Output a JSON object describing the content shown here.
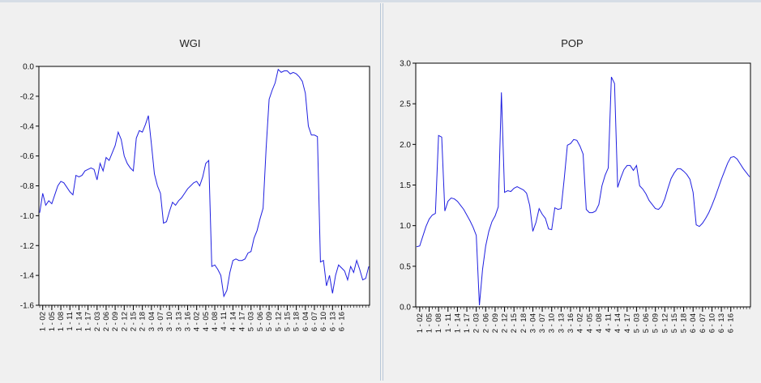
{
  "chart_data": [
    {
      "type": "line",
      "title": "WGI",
      "xlabel": "",
      "ylabel": "",
      "ylim": [
        -1.6,
        0.0
      ],
      "yticks": [
        "0.0",
        "-0.2",
        "-0.4",
        "-0.6",
        "-0.8",
        "-1.0",
        "-1.2",
        "-1.4",
        "-1.6"
      ],
      "ytick_values": [
        0.0,
        -0.2,
        -0.4,
        -0.6,
        -0.8,
        -1.0,
        -1.2,
        -1.4,
        -1.6
      ],
      "xticks": [
        "1 - 02",
        "1 - 05",
        "1 - 08",
        "1 - 11",
        "1 - 14",
        "1 - 17",
        "2 - 03",
        "2 - 06",
        "2 - 09",
        "2 - 12",
        "2 - 15",
        "2 - 18",
        "3 - 04",
        "3 - 07",
        "3 - 10",
        "3 - 13",
        "3 - 16",
        "4 - 02",
        "4 - 05",
        "4 - 08",
        "4 - 11",
        "4 - 14",
        "4 - 17",
        "5 - 03",
        "5 - 06",
        "5 - 09",
        "5 - 12",
        "5 - 15",
        "5 - 18",
        "6 - 04",
        "6 - 07",
        "6 - 10",
        "6 - 13",
        "6 - 16"
      ],
      "line_color": "#1f1fe0",
      "values": [
        -0.98,
        -0.85,
        -0.93,
        -0.9,
        -0.92,
        -0.86,
        -0.8,
        -0.77,
        -0.78,
        -0.81,
        -0.84,
        -0.86,
        -0.73,
        -0.74,
        -0.73,
        -0.7,
        -0.69,
        -0.68,
        -0.69,
        -0.76,
        -0.65,
        -0.7,
        -0.61,
        -0.63,
        -0.58,
        -0.53,
        -0.44,
        -0.49,
        -0.6,
        -0.65,
        -0.68,
        -0.7,
        -0.48,
        -0.43,
        -0.44,
        -0.39,
        -0.33,
        -0.52,
        -0.72,
        -0.8,
        -0.85,
        -1.05,
        -1.04,
        -0.97,
        -0.91,
        -0.93,
        -0.9,
        -0.88,
        -0.85,
        -0.82,
        -0.8,
        -0.78,
        -0.77,
        -0.8,
        -0.74,
        -0.65,
        -0.63,
        -1.34,
        -1.33,
        -1.36,
        -1.4,
        -1.54,
        -1.5,
        -1.38,
        -1.3,
        -1.29,
        -1.3,
        -1.3,
        -1.29,
        -1.25,
        -1.24,
        -1.15,
        -1.1,
        -1.02,
        -0.95,
        -0.55,
        -0.22,
        -0.16,
        -0.11,
        -0.02,
        -0.04,
        -0.03,
        -0.03,
        -0.05,
        -0.04,
        -0.05,
        -0.07,
        -0.1,
        -0.18,
        -0.4,
        -0.46,
        -0.46,
        -0.47,
        -1.31,
        -1.3,
        -1.47,
        -1.4,
        -1.52,
        -1.4,
        -1.33,
        -1.35,
        -1.37,
        -1.43,
        -1.34,
        -1.38,
        -1.3,
        -1.36,
        -1.43,
        -1.42,
        -1.34
      ]
    },
    {
      "type": "line",
      "title": "POP",
      "xlabel": "",
      "ylabel": "",
      "ylim": [
        0.0,
        3.0
      ],
      "yticks": [
        "0.0",
        "0.5",
        "1.0",
        "1.5",
        "2.0",
        "2.5",
        "3.0"
      ],
      "ytick_values": [
        0.0,
        0.5,
        1.0,
        1.5,
        2.0,
        2.5,
        3.0
      ],
      "xticks": [
        "1 - 02",
        "1 - 05",
        "1 - 08",
        "1 - 11",
        "1 - 14",
        "1 - 17",
        "2 - 03",
        "2 - 06",
        "2 - 09",
        "2 - 12",
        "2 - 15",
        "2 - 18",
        "3 - 04",
        "3 - 07",
        "3 - 10",
        "3 - 13",
        "3 - 16",
        "4 - 02",
        "4 - 05",
        "4 - 08",
        "4 - 11",
        "4 - 14",
        "4 - 17",
        "5 - 03",
        "5 - 06",
        "5 - 09",
        "5 - 12",
        "5 - 15",
        "5 - 18",
        "6 - 04",
        "6 - 07",
        "6 - 10",
        "6 - 13",
        "6 - 16"
      ],
      "line_color": "#1f1fe0",
      "values": [
        0.74,
        0.75,
        0.87,
        0.99,
        1.08,
        1.13,
        1.15,
        2.11,
        2.09,
        1.18,
        1.3,
        1.34,
        1.33,
        1.3,
        1.25,
        1.2,
        1.13,
        1.06,
        0.98,
        0.88,
        0.02,
        0.46,
        0.75,
        0.93,
        1.05,
        1.12,
        1.23,
        2.64,
        1.41,
        1.43,
        1.42,
        1.46,
        1.48,
        1.46,
        1.44,
        1.4,
        1.25,
        0.93,
        1.04,
        1.21,
        1.14,
        1.09,
        0.96,
        0.95,
        1.22,
        1.2,
        1.21,
        1.58,
        1.99,
        2.01,
        2.06,
        2.05,
        1.98,
        1.88,
        1.2,
        1.16,
        1.16,
        1.18,
        1.26,
        1.49,
        1.62,
        1.71,
        2.83,
        2.75,
        1.47,
        1.59,
        1.69,
        1.74,
        1.74,
        1.68,
        1.74,
        1.49,
        1.45,
        1.39,
        1.31,
        1.26,
        1.21,
        1.2,
        1.24,
        1.33,
        1.46,
        1.58,
        1.65,
        1.7,
        1.7,
        1.67,
        1.63,
        1.57,
        1.41,
        1.01,
        0.99,
        1.03,
        1.09,
        1.16,
        1.25,
        1.35,
        1.46,
        1.57,
        1.67,
        1.77,
        1.84,
        1.85,
        1.82,
        1.76,
        1.7,
        1.65,
        1.6
      ]
    }
  ]
}
